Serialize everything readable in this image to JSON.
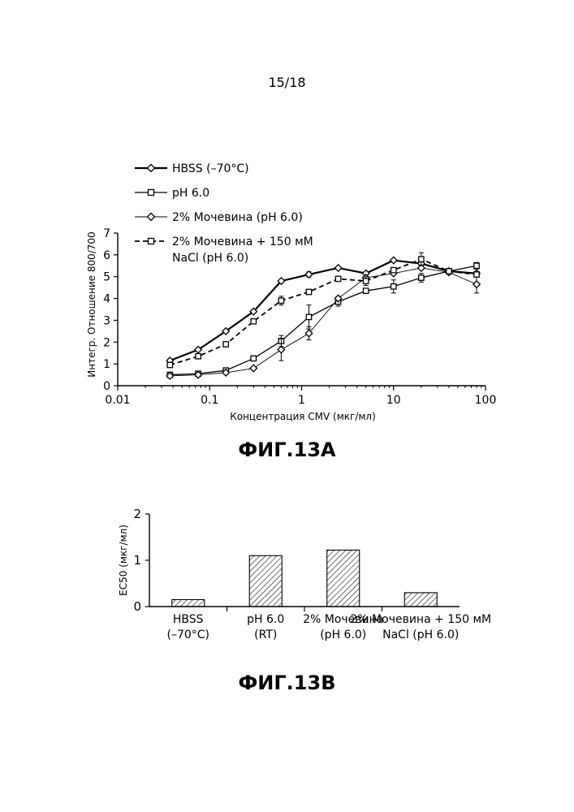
{
  "page": {
    "number": "15/18"
  },
  "figures": {
    "a_caption": "ФИГ.13A",
    "b_caption": "ФИГ.13B"
  },
  "chart_data": [
    {
      "type": "line",
      "xscale": "log",
      "xlabel": "Концентрация CMV (мкг/мл)",
      "ylabel": "Интегр. Отношение 800/700",
      "xlim": [
        0.01,
        100
      ],
      "ylim": [
        0,
        7
      ],
      "x_ticks": [
        "0.01",
        "0.1",
        "1",
        "10",
        "100"
      ],
      "y_ticks": [
        "0",
        "1",
        "2",
        "3",
        "4",
        "5",
        "6",
        "7"
      ],
      "legend_position": "top-left",
      "series": [
        {
          "name": "HBSS (–70°C)",
          "marker": "diamond",
          "line": "solid-bold",
          "x": [
            0.037,
            0.075,
            0.15,
            0.3,
            0.6,
            1.2,
            2.5,
            5,
            10,
            20,
            40,
            80
          ],
          "y": [
            1.15,
            1.65,
            2.5,
            3.4,
            4.8,
            5.1,
            5.4,
            5.15,
            5.75,
            5.6,
            5.25,
            5.15
          ],
          "err": [
            0,
            0,
            0,
            0,
            0,
            0.12,
            0,
            0,
            0,
            0,
            0,
            0
          ]
        },
        {
          "name": "pH 6.0",
          "marker": "square",
          "line": "solid",
          "x": [
            0.037,
            0.075,
            0.15,
            0.3,
            0.6,
            1.2,
            2.5,
            5,
            10,
            20,
            40,
            80
          ],
          "y": [
            0.5,
            0.55,
            0.7,
            1.25,
            2.05,
            3.15,
            3.85,
            4.35,
            4.55,
            4.95,
            5.25,
            5.5
          ],
          "err": [
            0,
            0,
            0,
            0,
            0.25,
            0.55,
            0.2,
            0,
            0.3,
            0.2,
            0,
            0.15
          ]
        },
        {
          "name": "2% Мочевина (pH 6.0)",
          "marker": "diamond",
          "line": "solid-thin",
          "x": [
            0.037,
            0.075,
            0.15,
            0.3,
            0.6,
            1.2,
            2.5,
            5,
            10,
            20,
            40,
            80
          ],
          "y": [
            0.45,
            0.5,
            0.6,
            0.8,
            1.65,
            2.4,
            4.0,
            4.95,
            5.15,
            5.4,
            5.2,
            4.65
          ],
          "err": [
            0,
            0,
            0,
            0,
            0.5,
            0.3,
            0.1,
            0,
            0,
            0,
            0,
            0.4
          ]
        },
        {
          "name": "2% Мочевина + 150 мМ NaCl (pH 6.0)",
          "name_line1": "2% Мочевина + 150 мМ",
          "name_line2": "NaCl (pH 6.0)",
          "marker": "square",
          "line": "dashed",
          "x": [
            0.037,
            0.075,
            0.15,
            0.3,
            0.6,
            1.2,
            2.5,
            5,
            10,
            20,
            40,
            80
          ],
          "y": [
            0.95,
            1.35,
            1.9,
            2.95,
            3.9,
            4.3,
            4.9,
            4.8,
            5.3,
            5.8,
            5.25,
            5.1
          ],
          "err": [
            0,
            0,
            0,
            0,
            0.2,
            0,
            0,
            0.2,
            0,
            0.3,
            0,
            0
          ]
        }
      ]
    },
    {
      "type": "bar",
      "ylabel": "EC50 (мкг/мл)",
      "ylim": [
        0,
        2
      ],
      "y_ticks": [
        "0",
        "1",
        "2"
      ],
      "bar_fill": "hatched",
      "categories": [
        {
          "line1": "HBSS",
          "line2": "(–70°C)"
        },
        {
          "line1": "pH 6.0",
          "line2": "(RT)"
        },
        {
          "line1": "2% Мочевина",
          "line2": "(pH 6.0)"
        },
        {
          "line1": "2% Мочевина + 150 мМ",
          "line2": "NaCl (pH 6.0)"
        }
      ],
      "values": [
        0.15,
        1.1,
        1.22,
        0.3
      ]
    }
  ]
}
